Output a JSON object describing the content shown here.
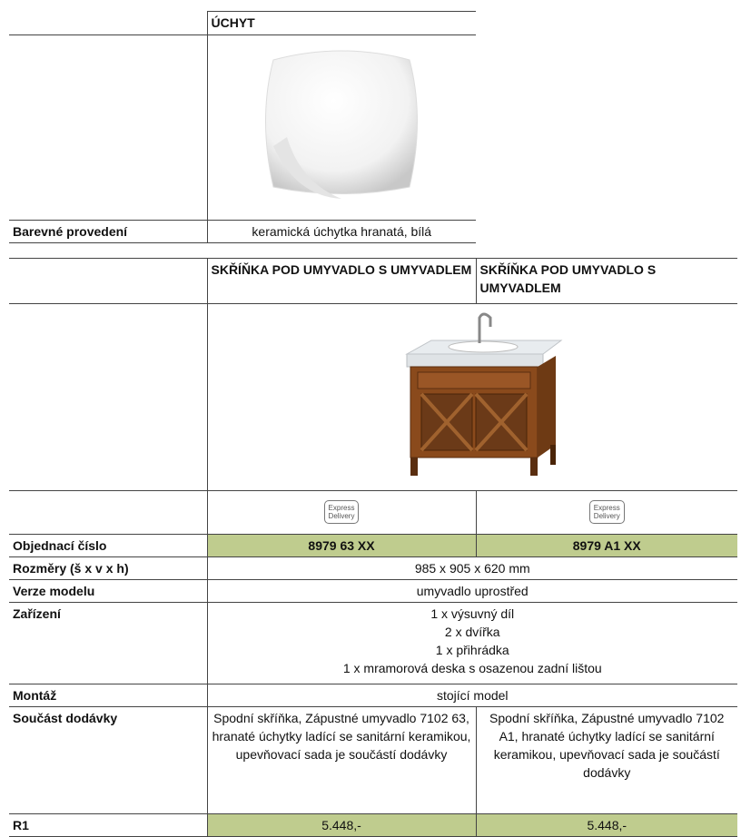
{
  "handle_table": {
    "header": "ÚCHYT",
    "color_label": "Barevné provedení",
    "color_value": "keramická úchytka hranatá, bílá"
  },
  "product_table": {
    "headers": [
      "SKŘÍŇKA POD UMYVADLO S UMYVADLEM",
      "SKŘÍŇKA POD UMYVADLO S UMYVADLEM"
    ],
    "badges": [
      [
        "Express",
        "Delivery"
      ],
      [
        "Express",
        "Delivery"
      ]
    ],
    "order": {
      "label": "Objednací číslo",
      "values": [
        "8979 63 XX",
        "8979 A1 XX"
      ]
    },
    "dimensions": {
      "label": "Rozměry (š x v x h)",
      "value": "985 x 905 x 620 mm"
    },
    "version": {
      "label": "Verze modelu",
      "value": "umyvadlo uprostřed"
    },
    "equipment": {
      "label": "Zařízení",
      "lines": [
        "1 x výsuvný díl",
        "2 x dvířka",
        "1 x přihrádka",
        "1 x mramorová deska s osazenou zadní lištou"
      ]
    },
    "mounting": {
      "label": "Montáž",
      "value": "stojící model"
    },
    "delivery": {
      "label": "Součást dodávky",
      "values": [
        "Spodní skříňka, Zápustné umyvadlo 7102 63, hranaté úchytky ladící se sanitární keramikou, upevňovací sada je součástí dodávky",
        "Spodní skříňka, Zápustné umyvadlo 7102 A1, hranaté úchytky ladící se sanitární keramikou, upevňovací sada je součástí dodávky"
      ]
    },
    "price": {
      "label": "R1",
      "values": [
        "5.448,-",
        "5.448,-"
      ]
    }
  }
}
